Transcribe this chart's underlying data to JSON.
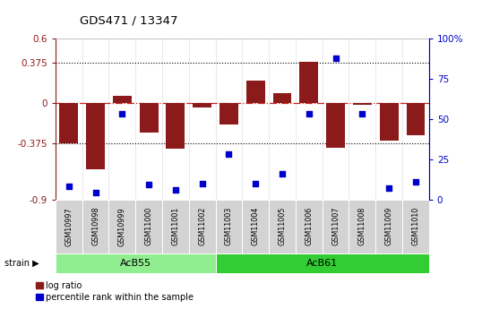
{
  "title": "GDS471 / 13347",
  "samples": [
    "GSM10997",
    "GSM10998",
    "GSM10999",
    "GSM11000",
    "GSM11001",
    "GSM11002",
    "GSM11003",
    "GSM11004",
    "GSM11005",
    "GSM11006",
    "GSM11007",
    "GSM11008",
    "GSM11009",
    "GSM11010"
  ],
  "log_ratio": [
    -0.38,
    -0.62,
    0.07,
    -0.28,
    -0.43,
    -0.04,
    -0.2,
    0.21,
    0.09,
    0.38,
    -0.42,
    -0.02,
    -0.35,
    -0.3
  ],
  "percentile": [
    8,
    4,
    53,
    9,
    6,
    10,
    28,
    10,
    16,
    53,
    88,
    53,
    7,
    11
  ],
  "groups": [
    {
      "label": "AcB55",
      "start": 0,
      "end": 5,
      "color": "#90ee90"
    },
    {
      "label": "AcB61",
      "start": 6,
      "end": 13,
      "color": "#32cd32"
    }
  ],
  "bar_color": "#8b1a1a",
  "dot_color": "#0000cc",
  "ylim_left": [
    -0.9,
    0.6
  ],
  "ylim_right": [
    0,
    100
  ],
  "yticks_left": [
    -0.9,
    -0.375,
    0,
    0.375,
    0.6
  ],
  "ytick_labels_left": [
    "-0.9",
    "-0.375",
    "0",
    "0.375",
    "0.6"
  ],
  "yticks_right": [
    0,
    25,
    50,
    75,
    100
  ],
  "ytick_labels_right": [
    "0",
    "25",
    "50",
    "75",
    "100%"
  ],
  "hlines_dotted": [
    -0.375,
    0.375
  ],
  "hline_dashdot_color": "#cc2222",
  "background_color": "#ffffff",
  "legend_items": [
    "log ratio",
    "percentile rank within the sample"
  ],
  "label_bg": "#d3d3d3",
  "border_color": "#aaaaaa"
}
